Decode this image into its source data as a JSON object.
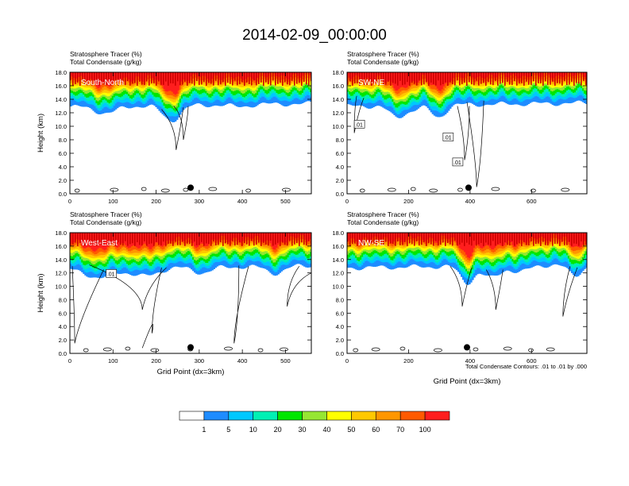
{
  "title": "2014-02-09_00:00:00",
  "colorbar": {
    "labels": [
      "1",
      "5",
      "10",
      "20",
      "30",
      "40",
      "50",
      "60",
      "70",
      "100"
    ],
    "colors": [
      "#ffffff",
      "#1e8cff",
      "#00c8ff",
      "#00f0b4",
      "#00e600",
      "#96e632",
      "#ffff00",
      "#ffc800",
      "#ff9600",
      "#ff5a00",
      "#ff1e1e"
    ]
  },
  "footnote": "Total Condensate Contours: .01 to .01 by .000",
  "chart_data": [
    {
      "type": "heatmap",
      "label": "South-North",
      "title_line1": "Stratosphere Tracer   (%)",
      "title_line2": "Total Condensate   (g/kg)",
      "ylabel": "Height (km)",
      "xlabel": "",
      "xlim": [
        0,
        560
      ],
      "ylim": [
        0,
        18
      ],
      "xticks": [
        "0",
        "100",
        "200",
        "300",
        "400",
        "500"
      ],
      "yticks": [
        "0.0",
        "2.0",
        "4.0",
        "6.0",
        "8.0",
        "10.0",
        "12.0",
        "14.0",
        "16.0",
        "18.0"
      ],
      "marker_x": 280,
      "contour_labels": []
    },
    {
      "type": "heatmap",
      "label": "SW-NE",
      "title_line1": "Stratosphere Tracer   (%)",
      "title_line2": "Total Condensate   (g/kg)",
      "ylabel": "",
      "xlabel": "",
      "xlim": [
        0,
        780
      ],
      "ylim": [
        0,
        18
      ],
      "xticks": [
        "0",
        "200",
        "400",
        "600"
      ],
      "yticks": [
        "0.0",
        "2.0",
        "4.0",
        "6.0",
        "8.0",
        "10.0",
        "12.0",
        "14.0",
        "16.0",
        "18.0"
      ],
      "marker_x": 395,
      "contour_labels": [
        ".01",
        ".01",
        ".01"
      ]
    },
    {
      "type": "heatmap",
      "label": "West-East",
      "title_line1": "Stratosphere Tracer   (%)",
      "title_line2": "Total Condensate   (g/kg)",
      "ylabel": "Height (km)",
      "xlabel": "Grid Point (dx=3km)",
      "xlim": [
        0,
        560
      ],
      "ylim": [
        0,
        18
      ],
      "xticks": [
        "0",
        "100",
        "200",
        "300",
        "400",
        "500"
      ],
      "yticks": [
        "0.0",
        "2.0",
        "4.0",
        "6.0",
        "8.0",
        "10.0",
        "12.0",
        "14.0",
        "16.0",
        "18.0"
      ],
      "marker_x": 280,
      "contour_labels": [
        ".01"
      ]
    },
    {
      "type": "heatmap",
      "label": "NW-SE",
      "title_line1": "Stratosphere Tracer   (%)",
      "title_line2": "Total Condensate   (g/kg)",
      "ylabel": "",
      "xlabel": "Grid Point (dx=3km)",
      "xlim": [
        0,
        780
      ],
      "ylim": [
        0,
        18
      ],
      "xticks": [
        "0",
        "200",
        "400",
        "600"
      ],
      "yticks": [
        "0.0",
        "2.0",
        "4.0",
        "6.0",
        "8.0",
        "10.0",
        "12.0",
        "14.0",
        "16.0",
        "18.0"
      ],
      "marker_x": 390,
      "contour_labels": []
    }
  ]
}
